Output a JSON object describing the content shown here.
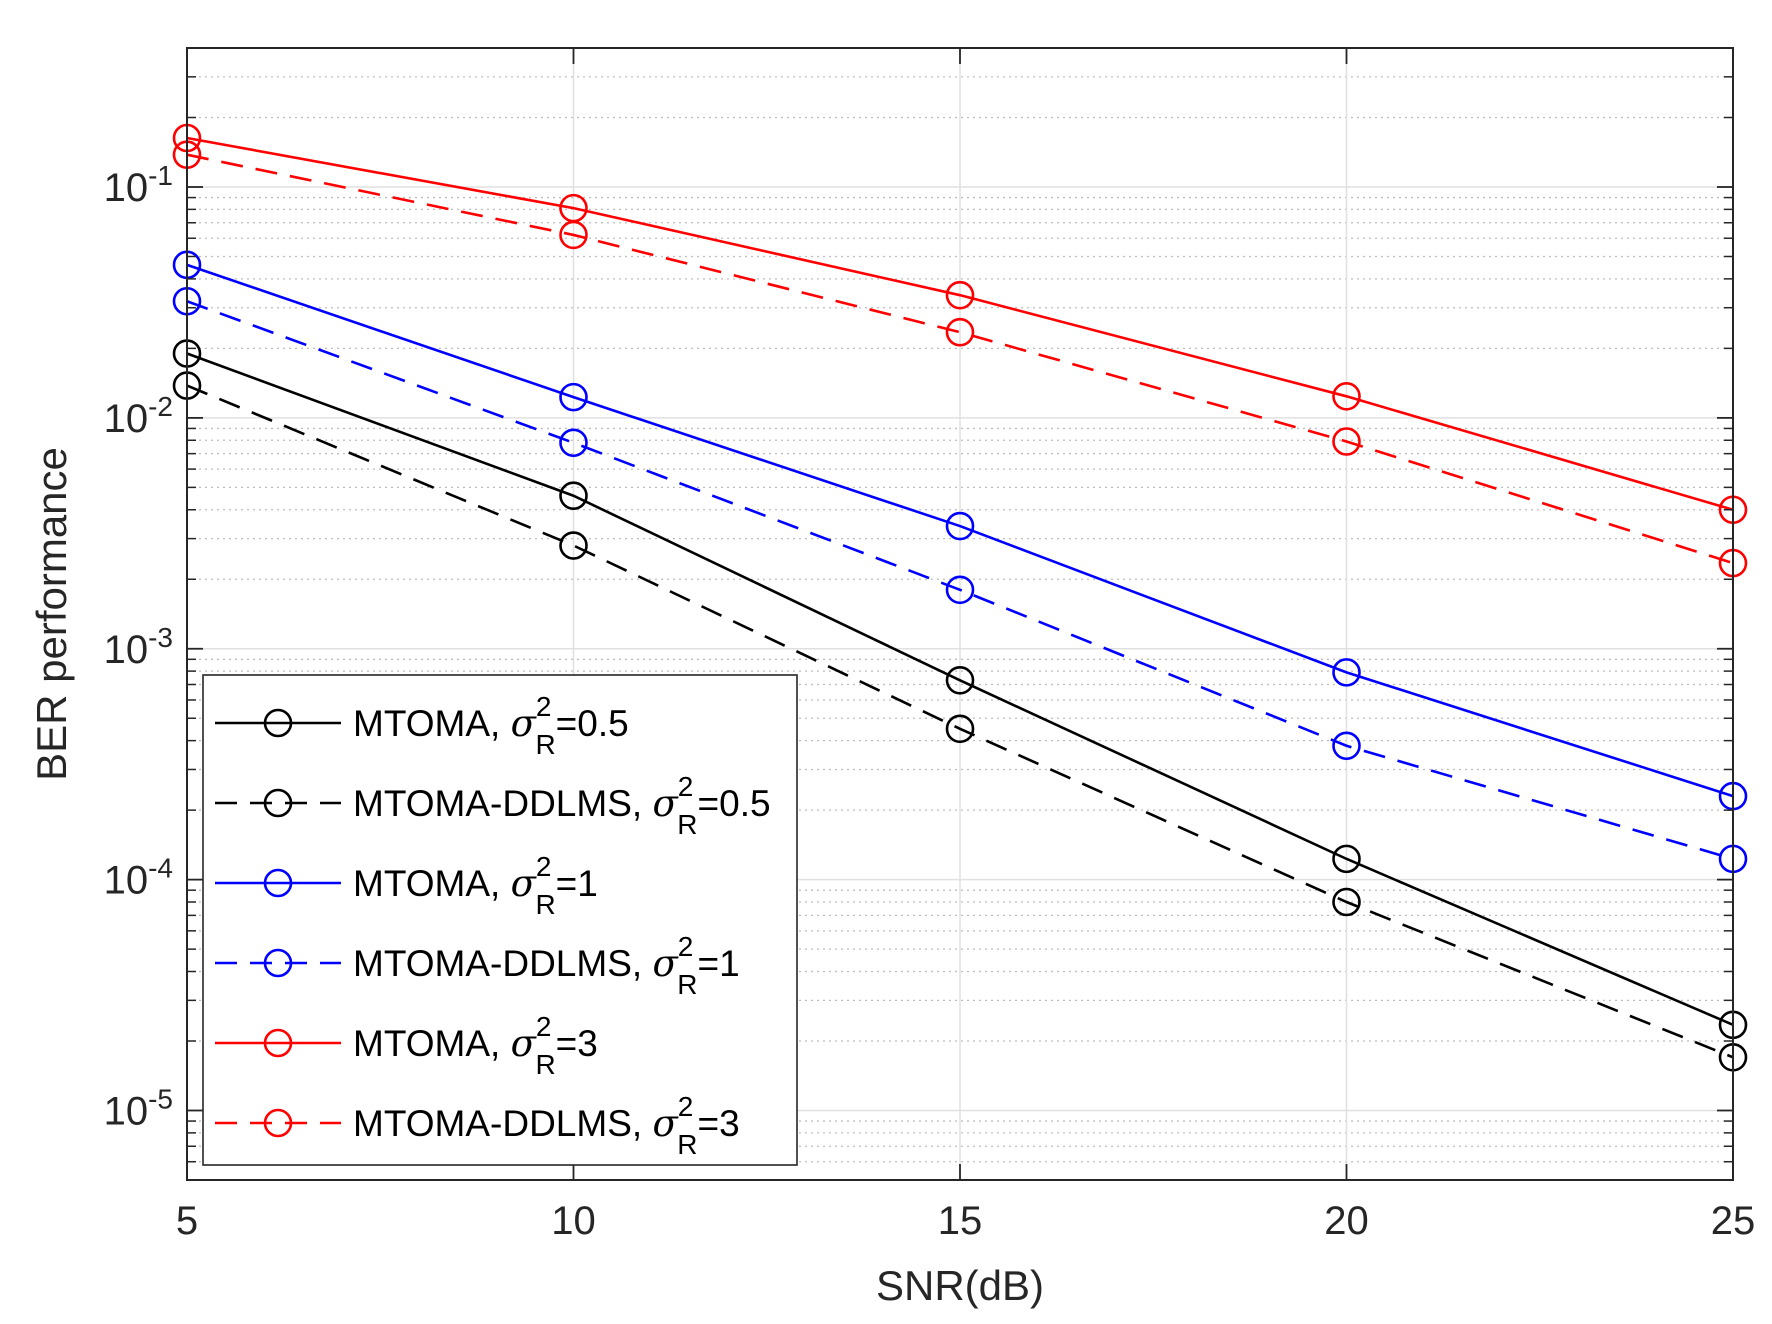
{
  "chart_data": {
    "type": "line",
    "title": "",
    "xlabel": "SNR(dB)",
    "ylabel": "BER performance",
    "xlim": [
      5,
      25
    ],
    "ylim": [
      5e-06,
      0.4
    ],
    "yscale": "log",
    "grid": true,
    "legend_position": "bottom-left",
    "x": [
      5,
      10,
      15,
      20,
      25
    ],
    "x_ticks": [
      "5",
      "10",
      "15",
      "20",
      "25"
    ],
    "y_ticks": [
      {
        "value": 1e-05,
        "base": "10",
        "exp": "-5"
      },
      {
        "value": 0.0001,
        "base": "10",
        "exp": "-4"
      },
      {
        "value": 0.001,
        "base": "10",
        "exp": "-3"
      },
      {
        "value": 0.01,
        "base": "10",
        "exp": "-2"
      },
      {
        "value": 0.1,
        "base": "10",
        "exp": "-1"
      }
    ],
    "series": [
      {
        "name": "MTOMA",
        "sym": "σ",
        "sup": "2",
        "sub": "R",
        "val": "=0.5",
        "color": "#000000",
        "dash": false,
        "values": [
          0.019,
          0.0046,
          0.00073,
          0.000123,
          2.35e-05
        ]
      },
      {
        "name": "MTOMA-DDLMS",
        "sym": "σ",
        "sup": "2",
        "sub": "R",
        "val": "=0.5",
        "color": "#000000",
        "dash": true,
        "values": [
          0.0138,
          0.0028,
          0.00045,
          8e-05,
          1.7e-05
        ]
      },
      {
        "name": "MTOMA",
        "sym": "σ",
        "sup": "2",
        "sub": "R",
        "val": "=1",
        "color": "#0000ff",
        "dash": false,
        "values": [
          0.046,
          0.0123,
          0.0034,
          0.00079,
          0.00023
        ]
      },
      {
        "name": "MTOMA-DDLMS",
        "sym": "σ",
        "sup": "2",
        "sub": "R",
        "val": "=1",
        "color": "#0000ff",
        "dash": true,
        "values": [
          0.032,
          0.0078,
          0.0018,
          0.00038,
          0.000123
        ]
      },
      {
        "name": "MTOMA",
        "sym": "σ",
        "sup": "2",
        "sub": "R",
        "val": "=3",
        "color": "#ff0000",
        "dash": false,
        "values": [
          0.163,
          0.081,
          0.034,
          0.0124,
          0.004
        ]
      },
      {
        "name": "MTOMA-DDLMS",
        "sym": "σ",
        "sup": "2",
        "sub": "R",
        "val": "=3",
        "color": "#ff0000",
        "dash": true,
        "values": [
          0.138,
          0.062,
          0.0235,
          0.0079,
          0.00235
        ]
      }
    ]
  }
}
